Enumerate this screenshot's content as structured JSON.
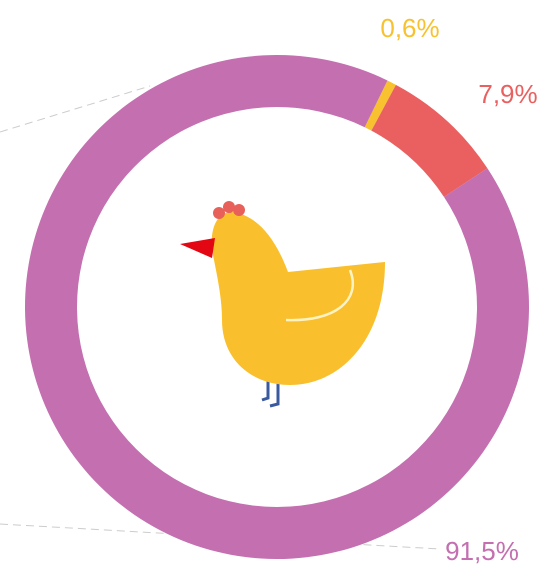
{
  "chart_data": {
    "type": "donut",
    "values": [
      0.6,
      7.9,
      91.5
    ],
    "value_labels": [
      "0,6%",
      "7,9%",
      "91,5%"
    ],
    "colors": [
      "#f7c12f",
      "#ea5f5f",
      "#c36fb0"
    ]
  }
}
